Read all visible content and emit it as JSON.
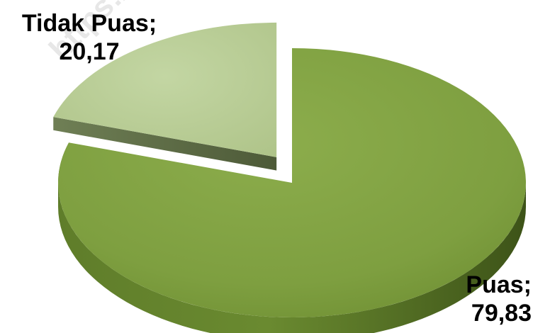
{
  "watermark": "https://jak",
  "chart_data": {
    "type": "pie",
    "style": "3d-exploded",
    "title": "",
    "categories": [
      "Tidak Puas",
      "Puas"
    ],
    "values": [
      20.17,
      79.83
    ],
    "labels": [
      {
        "name": "Tidak Puas;",
        "value": "20,17"
      },
      {
        "name": "Puas;",
        "value": "79,83"
      }
    ],
    "colors": [
      "#b7cc93",
      "#7a9b3c"
    ],
    "legend": "none"
  }
}
